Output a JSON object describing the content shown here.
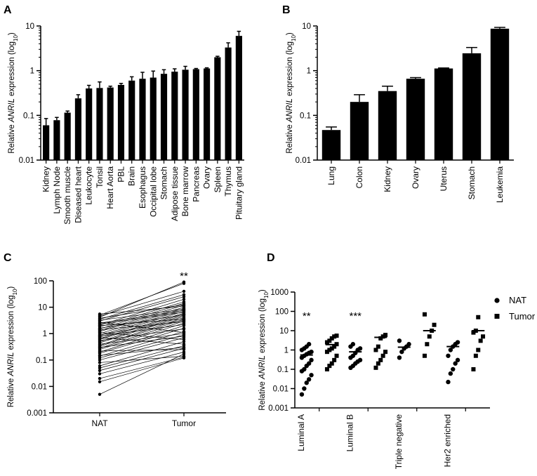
{
  "chart_data": [
    {
      "panel": "A",
      "type": "bar",
      "ylabel_parts": [
        "Relative ",
        "ANRIL",
        " expression (log",
        "10",
        ")"
      ],
      "yscale": "log",
      "ylim": [
        0.01,
        10
      ],
      "yticks": [
        "0.01",
        "0.1",
        "1",
        "10"
      ],
      "categories": [
        "Kidney",
        "Lymph Node",
        "Smooth muscle",
        "Diseased heart",
        "Leukocyte",
        "Tonsil",
        "Heart Aorta",
        "PBL",
        "Brain",
        "Esophagus",
        "Occipital lobe",
        "Stomach",
        "Adipose tissue",
        "Bone marrow",
        "Pancreas",
        "Ovary",
        "Spleen",
        "Thymus",
        "Pituitary gland"
      ],
      "values": [
        0.06,
        0.078,
        0.115,
        0.24,
        0.4,
        0.41,
        0.42,
        0.48,
        0.6,
        0.66,
        0.7,
        0.85,
        0.95,
        1.05,
        1.08,
        1.12,
        2.0,
        3.3,
        6.0
      ],
      "errors": [
        0.085,
        0.09,
        0.125,
        0.29,
        0.47,
        0.56,
        0.45,
        0.52,
        0.73,
        0.92,
        0.98,
        1.05,
        1.1,
        1.25,
        1.12,
        1.16,
        2.1,
        4.2,
        7.6
      ]
    },
    {
      "panel": "B",
      "type": "bar",
      "ylabel_parts": [
        "Relative ",
        "ANRIL",
        " expression (log",
        "10",
        ")"
      ],
      "yscale": "log",
      "ylim": [
        0.01,
        10
      ],
      "yticks": [
        "0.01",
        "0.1",
        "1",
        "10"
      ],
      "categories": [
        "Lung",
        "Colon",
        "Kidney",
        "Ovary",
        "Uterus",
        "Stomach",
        "Leukemia"
      ],
      "values": [
        0.047,
        0.2,
        0.35,
        0.66,
        1.12,
        2.45,
        8.7
      ],
      "errors": [
        0.055,
        0.29,
        0.45,
        0.7,
        1.15,
        3.3,
        9.3
      ]
    },
    {
      "panel": "C",
      "type": "paired-line",
      "ylabel_parts": [
        "Relative ",
        "ANRIL",
        " expression (log",
        "10",
        ")"
      ],
      "yscale": "log",
      "ylim": [
        0.001,
        100
      ],
      "yticks": [
        "0.001",
        "0.01",
        "0.1",
        "1",
        "10",
        "100"
      ],
      "categories": [
        "NAT",
        "Tumor"
      ],
      "significance": "**",
      "pairs": [
        [
          0.005,
          0.17
        ],
        [
          0.015,
          0.12
        ],
        [
          0.02,
          0.13
        ],
        [
          0.03,
          0.2
        ],
        [
          0.04,
          0.28
        ],
        [
          0.05,
          0.35
        ],
        [
          0.06,
          0.5
        ],
        [
          0.08,
          0.14
        ],
        [
          0.1,
          0.7
        ],
        [
          0.12,
          0.9
        ],
        [
          0.14,
          1.2
        ],
        [
          0.15,
          0.3
        ],
        [
          0.18,
          1.6
        ],
        [
          0.2,
          2.0
        ],
        [
          0.22,
          0.25
        ],
        [
          0.25,
          2.5
        ],
        [
          0.28,
          3.0
        ],
        [
          0.3,
          0.8
        ],
        [
          0.33,
          3.5
        ],
        [
          0.36,
          4.0
        ],
        [
          0.4,
          1.0
        ],
        [
          0.45,
          4.5
        ],
        [
          0.5,
          5.0
        ],
        [
          0.55,
          1.5
        ],
        [
          0.6,
          5.5
        ],
        [
          0.65,
          6.0
        ],
        [
          0.7,
          0.4
        ],
        [
          0.75,
          7.0
        ],
        [
          0.8,
          2.2
        ],
        [
          0.85,
          8.0
        ],
        [
          0.9,
          3.2
        ],
        [
          1.0,
          9.0
        ],
        [
          1.1,
          0.6
        ],
        [
          1.2,
          10.0
        ],
        [
          1.3,
          12.0
        ],
        [
          1.4,
          2.8
        ],
        [
          1.5,
          14.0
        ],
        [
          1.6,
          5.2
        ],
        [
          1.8,
          16.0
        ],
        [
          2.0,
          3.6
        ],
        [
          2.1,
          20.0
        ],
        [
          2.3,
          6.5
        ],
        [
          2.5,
          7.5
        ],
        [
          2.7,
          1.1
        ],
        [
          3.0,
          25.0
        ],
        [
          3.2,
          8.5
        ],
        [
          3.5,
          30.0
        ],
        [
          3.8,
          12.5
        ],
        [
          4.2,
          90.0
        ],
        [
          4.6,
          40.0
        ],
        [
          5.0,
          80.0
        ],
        [
          5.5,
          11.0
        ]
      ]
    },
    {
      "panel": "D",
      "type": "scatter",
      "ylabel_parts": [
        "Relative ",
        "ANRIL",
        " expression (log",
        "10",
        ")"
      ],
      "yscale": "log",
      "ylim": [
        0.001,
        1000
      ],
      "yticks": [
        "0.001",
        "0.01",
        "0.1",
        "1",
        "10",
        "100",
        "1000"
      ],
      "categories": [
        "Luminal A",
        "Luminal B",
        "Triple negative",
        "Her2 enriched"
      ],
      "legend": [
        {
          "name": "NAT",
          "marker": "circle"
        },
        {
          "name": "Tumor",
          "marker": "square"
        }
      ],
      "significance": [
        "**",
        "***",
        "",
        ""
      ],
      "groups": [
        {
          "category": "Luminal A",
          "nat": {
            "values": [
              0.005,
              0.01,
              0.02,
              0.03,
              0.05,
              0.08,
              0.1,
              0.15,
              0.2,
              0.3,
              0.4,
              0.5,
              0.6,
              0.7,
              0.8,
              1.0,
              1.2,
              1.5,
              2.0
            ],
            "mean": 0.55
          },
          "tumor": {
            "values": [
              0.1,
              0.15,
              0.2,
              0.3,
              0.5,
              0.8,
              1.0,
              1.2,
              1.5,
              2.0,
              2.5,
              3.0,
              4.0,
              5.0,
              5.5
            ],
            "mean": 1.9
          }
        },
        {
          "category": "Luminal B",
          "nat": {
            "values": [
              0.12,
              0.15,
              0.2,
              0.25,
              0.3,
              0.4,
              0.5,
              0.7,
              1.0,
              1.2,
              1.5,
              2.0
            ],
            "mean": 0.8
          },
          "tumor": {
            "values": [
              0.12,
              0.2,
              0.3,
              0.5,
              0.8,
              1.0,
              1.5,
              4.0,
              5.0,
              6.0
            ],
            "mean": 4.5
          }
        },
        {
          "category": "Triple negative",
          "nat": {
            "values": [
              0.4,
              0.8,
              1.2,
              1.5,
              2.0,
              3.0
            ],
            "mean": 1.4
          },
          "tumor": {
            "values": [
              0.5,
              2.0,
              5.0,
              10.0,
              20.0,
              70.0
            ],
            "mean": 10.0
          }
        },
        {
          "category": "Her2 enriched",
          "nat": {
            "values": [
              0.022,
              0.06,
              0.1,
              0.2,
              0.3,
              0.5,
              1.0,
              1.5,
              2.0,
              2.5
            ],
            "mean": 1.5
          },
          "tumor": {
            "values": [
              0.1,
              0.5,
              1.0,
              3.0,
              5.0,
              8.0,
              10.0,
              50.0
            ],
            "mean": 10.0
          }
        }
      ]
    }
  ]
}
